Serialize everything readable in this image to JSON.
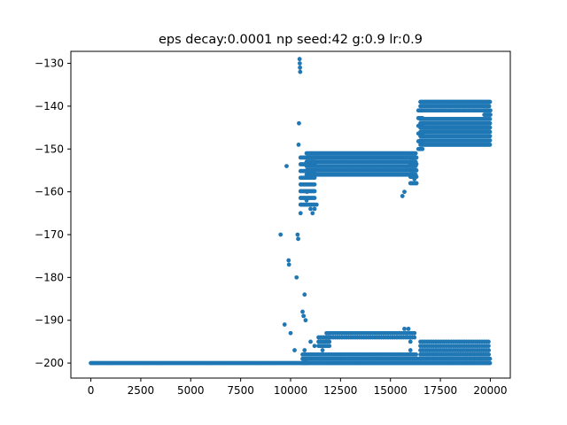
{
  "chart_data": {
    "type": "scatter",
    "title": "eps decay:0.0001 np seed:42 g:0.9 lr:0.9",
    "xlabel": "",
    "ylabel": "",
    "xlim": [
      -1000,
      21000
    ],
    "ylim": [
      -203.5,
      -127.2
    ],
    "x_ticks": [
      0,
      2500,
      5000,
      7500,
      10000,
      12500,
      15000,
      17500,
      20000
    ],
    "x_tick_labels": [
      "0",
      "2500",
      "5000",
      "7500",
      "10000",
      "12500",
      "15000",
      "17500",
      "20000"
    ],
    "y_ticks": [
      -200,
      -190,
      -180,
      -170,
      -160,
      -150,
      -140,
      -130
    ],
    "y_tick_labels": [
      "−200",
      "−190",
      "−180",
      "−170",
      "−160",
      "−150",
      "−140",
      "−130"
    ],
    "grid": false,
    "marker_color": "#1f77b4",
    "series": [
      {
        "points": [
          [
            9500,
            -170
          ],
          [
            9700,
            -191
          ],
          [
            9800,
            -154
          ],
          [
            9900,
            -176
          ],
          [
            9920,
            -177
          ],
          [
            10000,
            -193
          ],
          [
            10200,
            -197
          ],
          [
            10300,
            -180
          ],
          [
            10350,
            -170
          ],
          [
            10380,
            -171
          ],
          [
            10400,
            -149
          ],
          [
            10420,
            -144
          ],
          [
            10450,
            -129
          ],
          [
            10460,
            -130
          ],
          [
            10470,
            -131
          ],
          [
            10480,
            -132
          ],
          [
            10500,
            -165
          ],
          [
            10550,
            -163
          ],
          [
            10600,
            -188
          ],
          [
            10650,
            -189
          ],
          [
            10700,
            -184
          ],
          [
            10750,
            -190
          ],
          [
            10800,
            -162
          ],
          [
            10820,
            -160
          ],
          [
            10900,
            -155
          ],
          [
            11000,
            -164
          ],
          [
            11100,
            -165
          ],
          [
            11200,
            -164
          ],
          [
            11300,
            -163
          ],
          [
            10600,
            -198
          ],
          [
            10700,
            -197
          ],
          [
            11000,
            -195
          ],
          [
            11200,
            -196
          ],
          [
            11500,
            -199
          ],
          [
            11600,
            -197
          ],
          [
            16000,
            -197
          ],
          [
            15800,
            -193
          ],
          [
            16000,
            -195
          ],
          [
            15700,
            -192
          ],
          [
            15900,
            -192
          ],
          [
            15600,
            -161
          ],
          [
            15700,
            -160
          ],
          [
            16200,
            -157
          ],
          [
            16300,
            -158
          ]
        ],
        "bands": [
          {
            "x_start": 0,
            "x_end": 10800,
            "y_min": -200,
            "y_max": -200,
            "step_x": 80,
            "rows": 1
          },
          {
            "x_start": 10600,
            "x_end": 20000,
            "y_min": -200,
            "y_max": -199,
            "step_x": 70,
            "rows": 2
          },
          {
            "x_start": 10700,
            "x_end": 16300,
            "y_min": -199,
            "y_max": -198,
            "step_x": 90,
            "rows": 2
          },
          {
            "x_start": 11800,
            "x_end": 16200,
            "y_min": -194,
            "y_max": -193,
            "step_x": 110,
            "rows": 2
          },
          {
            "x_start": 11400,
            "x_end": 12000,
            "y_min": -196,
            "y_max": -194,
            "step_x": 90,
            "rows": 3
          },
          {
            "x_start": 16500,
            "x_end": 20000,
            "y_min": -199,
            "y_max": -197,
            "step_x": 90,
            "rows": 3
          },
          {
            "x_start": 16500,
            "x_end": 20000,
            "y_min": -196,
            "y_max": -195,
            "step_x": 110,
            "rows": 2
          },
          {
            "x_start": 10500,
            "x_end": 11200,
            "y_min": -163,
            "y_max": -152,
            "step_x": 70,
            "rows": 8
          },
          {
            "x_start": 10800,
            "x_end": 16300,
            "y_min": -156,
            "y_max": -151,
            "step_x": 60,
            "rows": 6
          },
          {
            "x_start": 16000,
            "x_end": 16300,
            "y_min": -158,
            "y_max": -152,
            "step_x": 60,
            "rows": 5
          },
          {
            "x_start": 16400,
            "x_end": 16600,
            "y_min": -150,
            "y_max": -141,
            "step_x": 50,
            "rows": 6
          },
          {
            "x_start": 16500,
            "x_end": 20000,
            "y_min": -149,
            "y_max": -143,
            "step_x": 60,
            "rows": 7
          },
          {
            "x_start": 16500,
            "x_end": 20000,
            "y_min": -139,
            "y_max": -139,
            "step_x": 60,
            "rows": 1
          },
          {
            "x_start": 16500,
            "x_end": 20000,
            "y_min": -141,
            "y_max": -140,
            "step_x": 80,
            "rows": 2
          },
          {
            "x_start": 19700,
            "x_end": 20000,
            "y_min": -142,
            "y_max": -141,
            "step_x": 60,
            "rows": 2
          }
        ]
      }
    ]
  }
}
